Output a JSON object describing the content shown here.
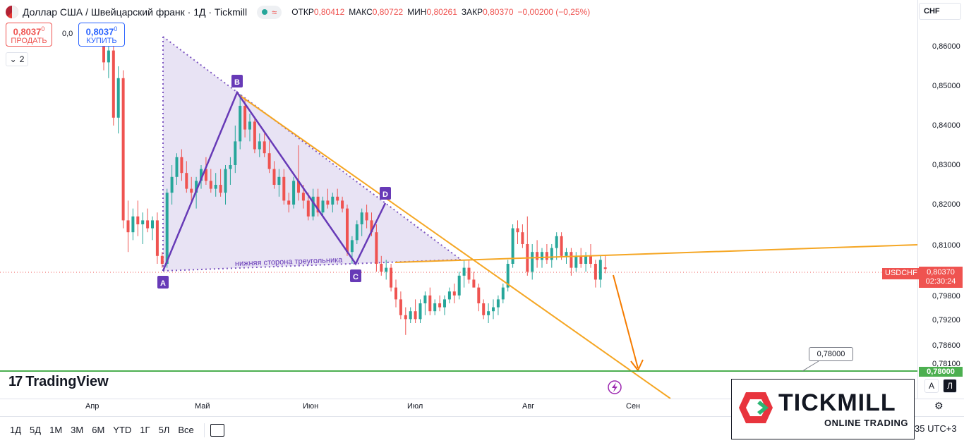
{
  "header": {
    "title": "Доллар США / Швейцарский франк · 1Д · Tickmill",
    "ohlc": [
      {
        "label": "ОТКР",
        "value": "0,80412"
      },
      {
        "label": "МАКС",
        "value": "0,80722"
      },
      {
        "label": "МИН",
        "value": "0,80261"
      },
      {
        "label": "ЗАКР",
        "value": "0,80370"
      },
      {
        "label": "",
        "value": "−0,00200 (−0,25%)"
      }
    ]
  },
  "trade": {
    "sell_price_main": "0,8037",
    "sell_price_sup": "0",
    "sell_label": "ПРОДАТЬ",
    "buy_price_main": "0,8037",
    "buy_price_sup": "0",
    "buy_label": "КУПИТЬ",
    "spread": "0,0"
  },
  "indicators_toggle": {
    "count": "2"
  },
  "currency": "CHF",
  "price_axis_labels": [
    "0,86000",
    "0,85000",
    "0,84000",
    "0,83000",
    "0,82000",
    "0,81000",
    "0,79800",
    "0,79200",
    "0,78600",
    "0,78100"
  ],
  "symbol_tag": "USDCHF",
  "last_price": {
    "value": "0,80370",
    "countdown": "02:30:24"
  },
  "target_level": {
    "axis_value": "0,78000",
    "callout": "0,78000"
  },
  "pattern": {
    "points": [
      "A",
      "B",
      "C",
      "D"
    ],
    "annotation": "нижняя сторона треугольника"
  },
  "time_axis": [
    "Апр",
    "Май",
    "Июн",
    "Июл",
    "Авг",
    "Сен"
  ],
  "brand": "TradingView",
  "ranges": [
    "1Д",
    "5Д",
    "1М",
    "3М",
    "6М",
    "YTD",
    "1Г",
    "5Л",
    "Все"
  ],
  "timezone": "35 UTC+3",
  "scale_buttons": {
    "auto": "A",
    "log": "Л"
  },
  "broker": {
    "name": "TICKMILL",
    "subtitle": "ONLINE TRADING"
  },
  "colors": {
    "up": "#26a69a",
    "down": "#ef5350",
    "pattern": "#673ab7",
    "trendline": "#f5a623",
    "target": "#4caf50"
  },
  "chart_data": {
    "type": "candlestick",
    "candles": [
      {
        "o": 0.862,
        "h": 0.866,
        "l": 0.854,
        "c": 0.856
      },
      {
        "o": 0.856,
        "h": 0.861,
        "l": 0.852,
        "c": 0.859
      },
      {
        "o": 0.859,
        "h": 0.862,
        "l": 0.84,
        "c": 0.842
      },
      {
        "o": 0.842,
        "h": 0.855,
        "l": 0.838,
        "c": 0.852
      },
      {
        "o": 0.852,
        "h": 0.854,
        "l": 0.814,
        "c": 0.816
      },
      {
        "o": 0.816,
        "h": 0.821,
        "l": 0.808,
        "c": 0.813
      },
      {
        "o": 0.813,
        "h": 0.819,
        "l": 0.811,
        "c": 0.817
      },
      {
        "o": 0.817,
        "h": 0.821,
        "l": 0.812,
        "c": 0.815
      },
      {
        "o": 0.815,
        "h": 0.818,
        "l": 0.81,
        "c": 0.816
      },
      {
        "o": 0.816,
        "h": 0.819,
        "l": 0.813,
        "c": 0.814
      },
      {
        "o": 0.814,
        "h": 0.817,
        "l": 0.811,
        "c": 0.816
      },
      {
        "o": 0.816,
        "h": 0.818,
        "l": 0.805,
        "c": 0.807
      },
      {
        "o": 0.807,
        "h": 0.808,
        "l": 0.804,
        "c": 0.805
      },
      {
        "o": 0.805,
        "h": 0.824,
        "l": 0.804,
        "c": 0.823
      },
      {
        "o": 0.823,
        "h": 0.83,
        "l": 0.82,
        "c": 0.827
      },
      {
        "o": 0.827,
        "h": 0.833,
        "l": 0.825,
        "c": 0.832
      },
      {
        "o": 0.832,
        "h": 0.834,
        "l": 0.826,
        "c": 0.828
      },
      {
        "o": 0.828,
        "h": 0.831,
        "l": 0.823,
        "c": 0.824
      },
      {
        "o": 0.824,
        "h": 0.827,
        "l": 0.821,
        "c": 0.823
      },
      {
        "o": 0.823,
        "h": 0.827,
        "l": 0.819,
        "c": 0.826
      },
      {
        "o": 0.826,
        "h": 0.83,
        "l": 0.824,
        "c": 0.829
      },
      {
        "o": 0.829,
        "h": 0.832,
        "l": 0.825,
        "c": 0.826
      },
      {
        "o": 0.826,
        "h": 0.829,
        "l": 0.823,
        "c": 0.824
      },
      {
        "o": 0.824,
        "h": 0.828,
        "l": 0.822,
        "c": 0.825
      },
      {
        "o": 0.825,
        "h": 0.829,
        "l": 0.822,
        "c": 0.823
      },
      {
        "o": 0.823,
        "h": 0.83,
        "l": 0.82,
        "c": 0.829
      },
      {
        "o": 0.829,
        "h": 0.832,
        "l": 0.825,
        "c": 0.83
      },
      {
        "o": 0.83,
        "h": 0.84,
        "l": 0.828,
        "c": 0.836
      },
      {
        "o": 0.836,
        "h": 0.848,
        "l": 0.834,
        "c": 0.845
      },
      {
        "o": 0.845,
        "h": 0.847,
        "l": 0.837,
        "c": 0.839
      },
      {
        "o": 0.839,
        "h": 0.843,
        "l": 0.836,
        "c": 0.841
      },
      {
        "o": 0.841,
        "h": 0.842,
        "l": 0.833,
        "c": 0.834
      },
      {
        "o": 0.834,
        "h": 0.838,
        "l": 0.832,
        "c": 0.836
      },
      {
        "o": 0.836,
        "h": 0.838,
        "l": 0.832,
        "c": 0.833
      },
      {
        "o": 0.833,
        "h": 0.836,
        "l": 0.828,
        "c": 0.829
      },
      {
        "o": 0.829,
        "h": 0.831,
        "l": 0.824,
        "c": 0.825
      },
      {
        "o": 0.825,
        "h": 0.829,
        "l": 0.822,
        "c": 0.827
      },
      {
        "o": 0.827,
        "h": 0.829,
        "l": 0.82,
        "c": 0.821
      },
      {
        "o": 0.821,
        "h": 0.823,
        "l": 0.818,
        "c": 0.82
      },
      {
        "o": 0.82,
        "h": 0.827,
        "l": 0.819,
        "c": 0.826
      },
      {
        "o": 0.826,
        "h": 0.835,
        "l": 0.821,
        "c": 0.823
      },
      {
        "o": 0.823,
        "h": 0.825,
        "l": 0.819,
        "c": 0.821
      },
      {
        "o": 0.821,
        "h": 0.823,
        "l": 0.816,
        "c": 0.817
      },
      {
        "o": 0.817,
        "h": 0.824,
        "l": 0.816,
        "c": 0.822
      },
      {
        "o": 0.822,
        "h": 0.824,
        "l": 0.817,
        "c": 0.818
      },
      {
        "o": 0.818,
        "h": 0.822,
        "l": 0.817,
        "c": 0.821
      },
      {
        "o": 0.821,
        "h": 0.824,
        "l": 0.819,
        "c": 0.82
      },
      {
        "o": 0.82,
        "h": 0.823,
        "l": 0.818,
        "c": 0.822
      },
      {
        "o": 0.822,
        "h": 0.824,
        "l": 0.82,
        "c": 0.821
      },
      {
        "o": 0.821,
        "h": 0.822,
        "l": 0.818,
        "c": 0.819
      },
      {
        "o": 0.819,
        "h": 0.82,
        "l": 0.807,
        "c": 0.808
      },
      {
        "o": 0.808,
        "h": 0.812,
        "l": 0.805,
        "c": 0.811
      },
      {
        "o": 0.811,
        "h": 0.816,
        "l": 0.81,
        "c": 0.815
      },
      {
        "o": 0.815,
        "h": 0.819,
        "l": 0.812,
        "c": 0.818
      },
      {
        "o": 0.818,
        "h": 0.82,
        "l": 0.814,
        "c": 0.816
      },
      {
        "o": 0.816,
        "h": 0.818,
        "l": 0.812,
        "c": 0.813
      },
      {
        "o": 0.813,
        "h": 0.815,
        "l": 0.803,
        "c": 0.805
      },
      {
        "o": 0.805,
        "h": 0.807,
        "l": 0.802,
        "c": 0.803
      },
      {
        "o": 0.803,
        "h": 0.806,
        "l": 0.801,
        "c": 0.804
      },
      {
        "o": 0.804,
        "h": 0.805,
        "l": 0.798,
        "c": 0.799
      },
      {
        "o": 0.799,
        "h": 0.801,
        "l": 0.794,
        "c": 0.796
      },
      {
        "o": 0.796,
        "h": 0.798,
        "l": 0.791,
        "c": 0.792
      },
      {
        "o": 0.792,
        "h": 0.794,
        "l": 0.787,
        "c": 0.791
      },
      {
        "o": 0.791,
        "h": 0.794,
        "l": 0.79,
        "c": 0.793
      },
      {
        "o": 0.793,
        "h": 0.796,
        "l": 0.79,
        "c": 0.791
      },
      {
        "o": 0.791,
        "h": 0.796,
        "l": 0.79,
        "c": 0.795
      },
      {
        "o": 0.795,
        "h": 0.798,
        "l": 0.792,
        "c": 0.797
      },
      {
        "o": 0.797,
        "h": 0.799,
        "l": 0.792,
        "c": 0.793
      },
      {
        "o": 0.793,
        "h": 0.796,
        "l": 0.792,
        "c": 0.795
      },
      {
        "o": 0.795,
        "h": 0.797,
        "l": 0.793,
        "c": 0.794
      },
      {
        "o": 0.794,
        "h": 0.797,
        "l": 0.792,
        "c": 0.796
      },
      {
        "o": 0.796,
        "h": 0.799,
        "l": 0.795,
        "c": 0.798
      },
      {
        "o": 0.798,
        "h": 0.8,
        "l": 0.795,
        "c": 0.797
      },
      {
        "o": 0.797,
        "h": 0.803,
        "l": 0.796,
        "c": 0.802
      },
      {
        "o": 0.802,
        "h": 0.806,
        "l": 0.799,
        "c": 0.804
      },
      {
        "o": 0.804,
        "h": 0.806,
        "l": 0.8,
        "c": 0.801
      },
      {
        "o": 0.801,
        "h": 0.803,
        "l": 0.799,
        "c": 0.799
      },
      {
        "o": 0.799,
        "h": 0.8,
        "l": 0.793,
        "c": 0.795
      },
      {
        "o": 0.795,
        "h": 0.796,
        "l": 0.791,
        "c": 0.792
      },
      {
        "o": 0.792,
        "h": 0.795,
        "l": 0.79,
        "c": 0.793
      },
      {
        "o": 0.793,
        "h": 0.796,
        "l": 0.791,
        "c": 0.794
      },
      {
        "o": 0.794,
        "h": 0.797,
        "l": 0.792,
        "c": 0.796
      },
      {
        "o": 0.796,
        "h": 0.8,
        "l": 0.795,
        "c": 0.799
      },
      {
        "o": 0.799,
        "h": 0.806,
        "l": 0.798,
        "c": 0.805
      },
      {
        "o": 0.805,
        "h": 0.815,
        "l": 0.804,
        "c": 0.814
      },
      {
        "o": 0.814,
        "h": 0.816,
        "l": 0.81,
        "c": 0.813
      },
      {
        "o": 0.813,
        "h": 0.815,
        "l": 0.809,
        "c": 0.81
      },
      {
        "o": 0.81,
        "h": 0.817,
        "l": 0.802,
        "c": 0.803
      },
      {
        "o": 0.803,
        "h": 0.81,
        "l": 0.801,
        "c": 0.808
      },
      {
        "o": 0.808,
        "h": 0.811,
        "l": 0.804,
        "c": 0.806
      },
      {
        "o": 0.806,
        "h": 0.809,
        "l": 0.804,
        "c": 0.808
      },
      {
        "o": 0.808,
        "h": 0.81,
        "l": 0.805,
        "c": 0.806
      },
      {
        "o": 0.806,
        "h": 0.81,
        "l": 0.804,
        "c": 0.809
      },
      {
        "o": 0.809,
        "h": 0.813,
        "l": 0.806,
        "c": 0.812
      },
      {
        "o": 0.812,
        "h": 0.813,
        "l": 0.806,
        "c": 0.807
      },
      {
        "o": 0.807,
        "h": 0.809,
        "l": 0.805,
        "c": 0.808
      },
      {
        "o": 0.808,
        "h": 0.809,
        "l": 0.802,
        "c": 0.804
      },
      {
        "o": 0.804,
        "h": 0.808,
        "l": 0.803,
        "c": 0.807
      },
      {
        "o": 0.807,
        "h": 0.809,
        "l": 0.804,
        "c": 0.805
      },
      {
        "o": 0.805,
        "h": 0.808,
        "l": 0.803,
        "c": 0.807
      },
      {
        "o": 0.807,
        "h": 0.81,
        "l": 0.804,
        "c": 0.805
      },
      {
        "o": 0.805,
        "h": 0.806,
        "l": 0.799,
        "c": 0.801
      },
      {
        "o": 0.801,
        "h": 0.807,
        "l": 0.799,
        "c": 0.806
      },
      {
        "o": 0.8041,
        "h": 0.8072,
        "l": 0.8026,
        "c": 0.8037
      }
    ]
  }
}
